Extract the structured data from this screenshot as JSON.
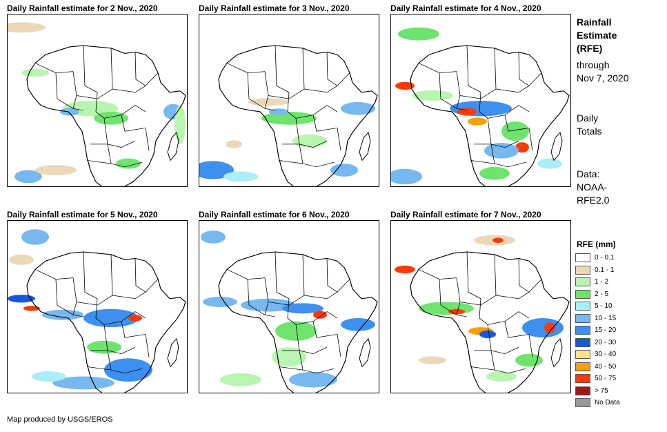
{
  "panels": [
    {
      "title": "Daily Rainfall estimate for 2 Nov., 2020",
      "rain_pattern": "day2"
    },
    {
      "title": "Daily Rainfall estimate for 3 Nov., 2020",
      "rain_pattern": "day3"
    },
    {
      "title": "Daily Rainfall estimate for 4 Nov., 2020",
      "rain_pattern": "day4"
    },
    {
      "title": "Daily Rainfall estimate for 5 Nov., 2020",
      "rain_pattern": "day5"
    },
    {
      "title": "Daily Rainfall estimate for 6 Nov., 2020",
      "rain_pattern": "day6"
    },
    {
      "title": "Daily Rainfall estimate for 7 Nov., 2020",
      "rain_pattern": "day7"
    }
  ],
  "side": {
    "title_lines": [
      "Rainfall",
      "Estimate",
      "(RFE)"
    ],
    "through_lines": [
      "through",
      "Nov 7, 2020"
    ],
    "totals_lines": [
      "Daily",
      "Totals"
    ],
    "data_lines": [
      "Data:",
      "NOAA-",
      "RFE2.0"
    ]
  },
  "legend": {
    "title": "RFE (mm)",
    "items": [
      {
        "label": "0 - 0.1",
        "color": "#ffffff"
      },
      {
        "label": "0.1 - 1",
        "color": "#ead8b8"
      },
      {
        "label": "1 - 2",
        "color": "#b8f5b0"
      },
      {
        "label": "2 - 5",
        "color": "#6ee46e"
      },
      {
        "label": "5 - 10",
        "color": "#aaeefa"
      },
      {
        "label": "10 - 15",
        "color": "#77b8f0"
      },
      {
        "label": "15 - 20",
        "color": "#3d8ff0"
      },
      {
        "label": "20 - 30",
        "color": "#1a55e0"
      },
      {
        "label": "30 - 40",
        "color": "#fce38a"
      },
      {
        "label": "40 - 50",
        "color": "#f7a000"
      },
      {
        "label": "50 - 75",
        "color": "#ff3a00"
      },
      {
        "label": "> 75",
        "color": "#a41515"
      },
      {
        "label": "No Data",
        "color": "#999999"
      }
    ]
  },
  "footer": "Map produced by USGS/EROS"
}
